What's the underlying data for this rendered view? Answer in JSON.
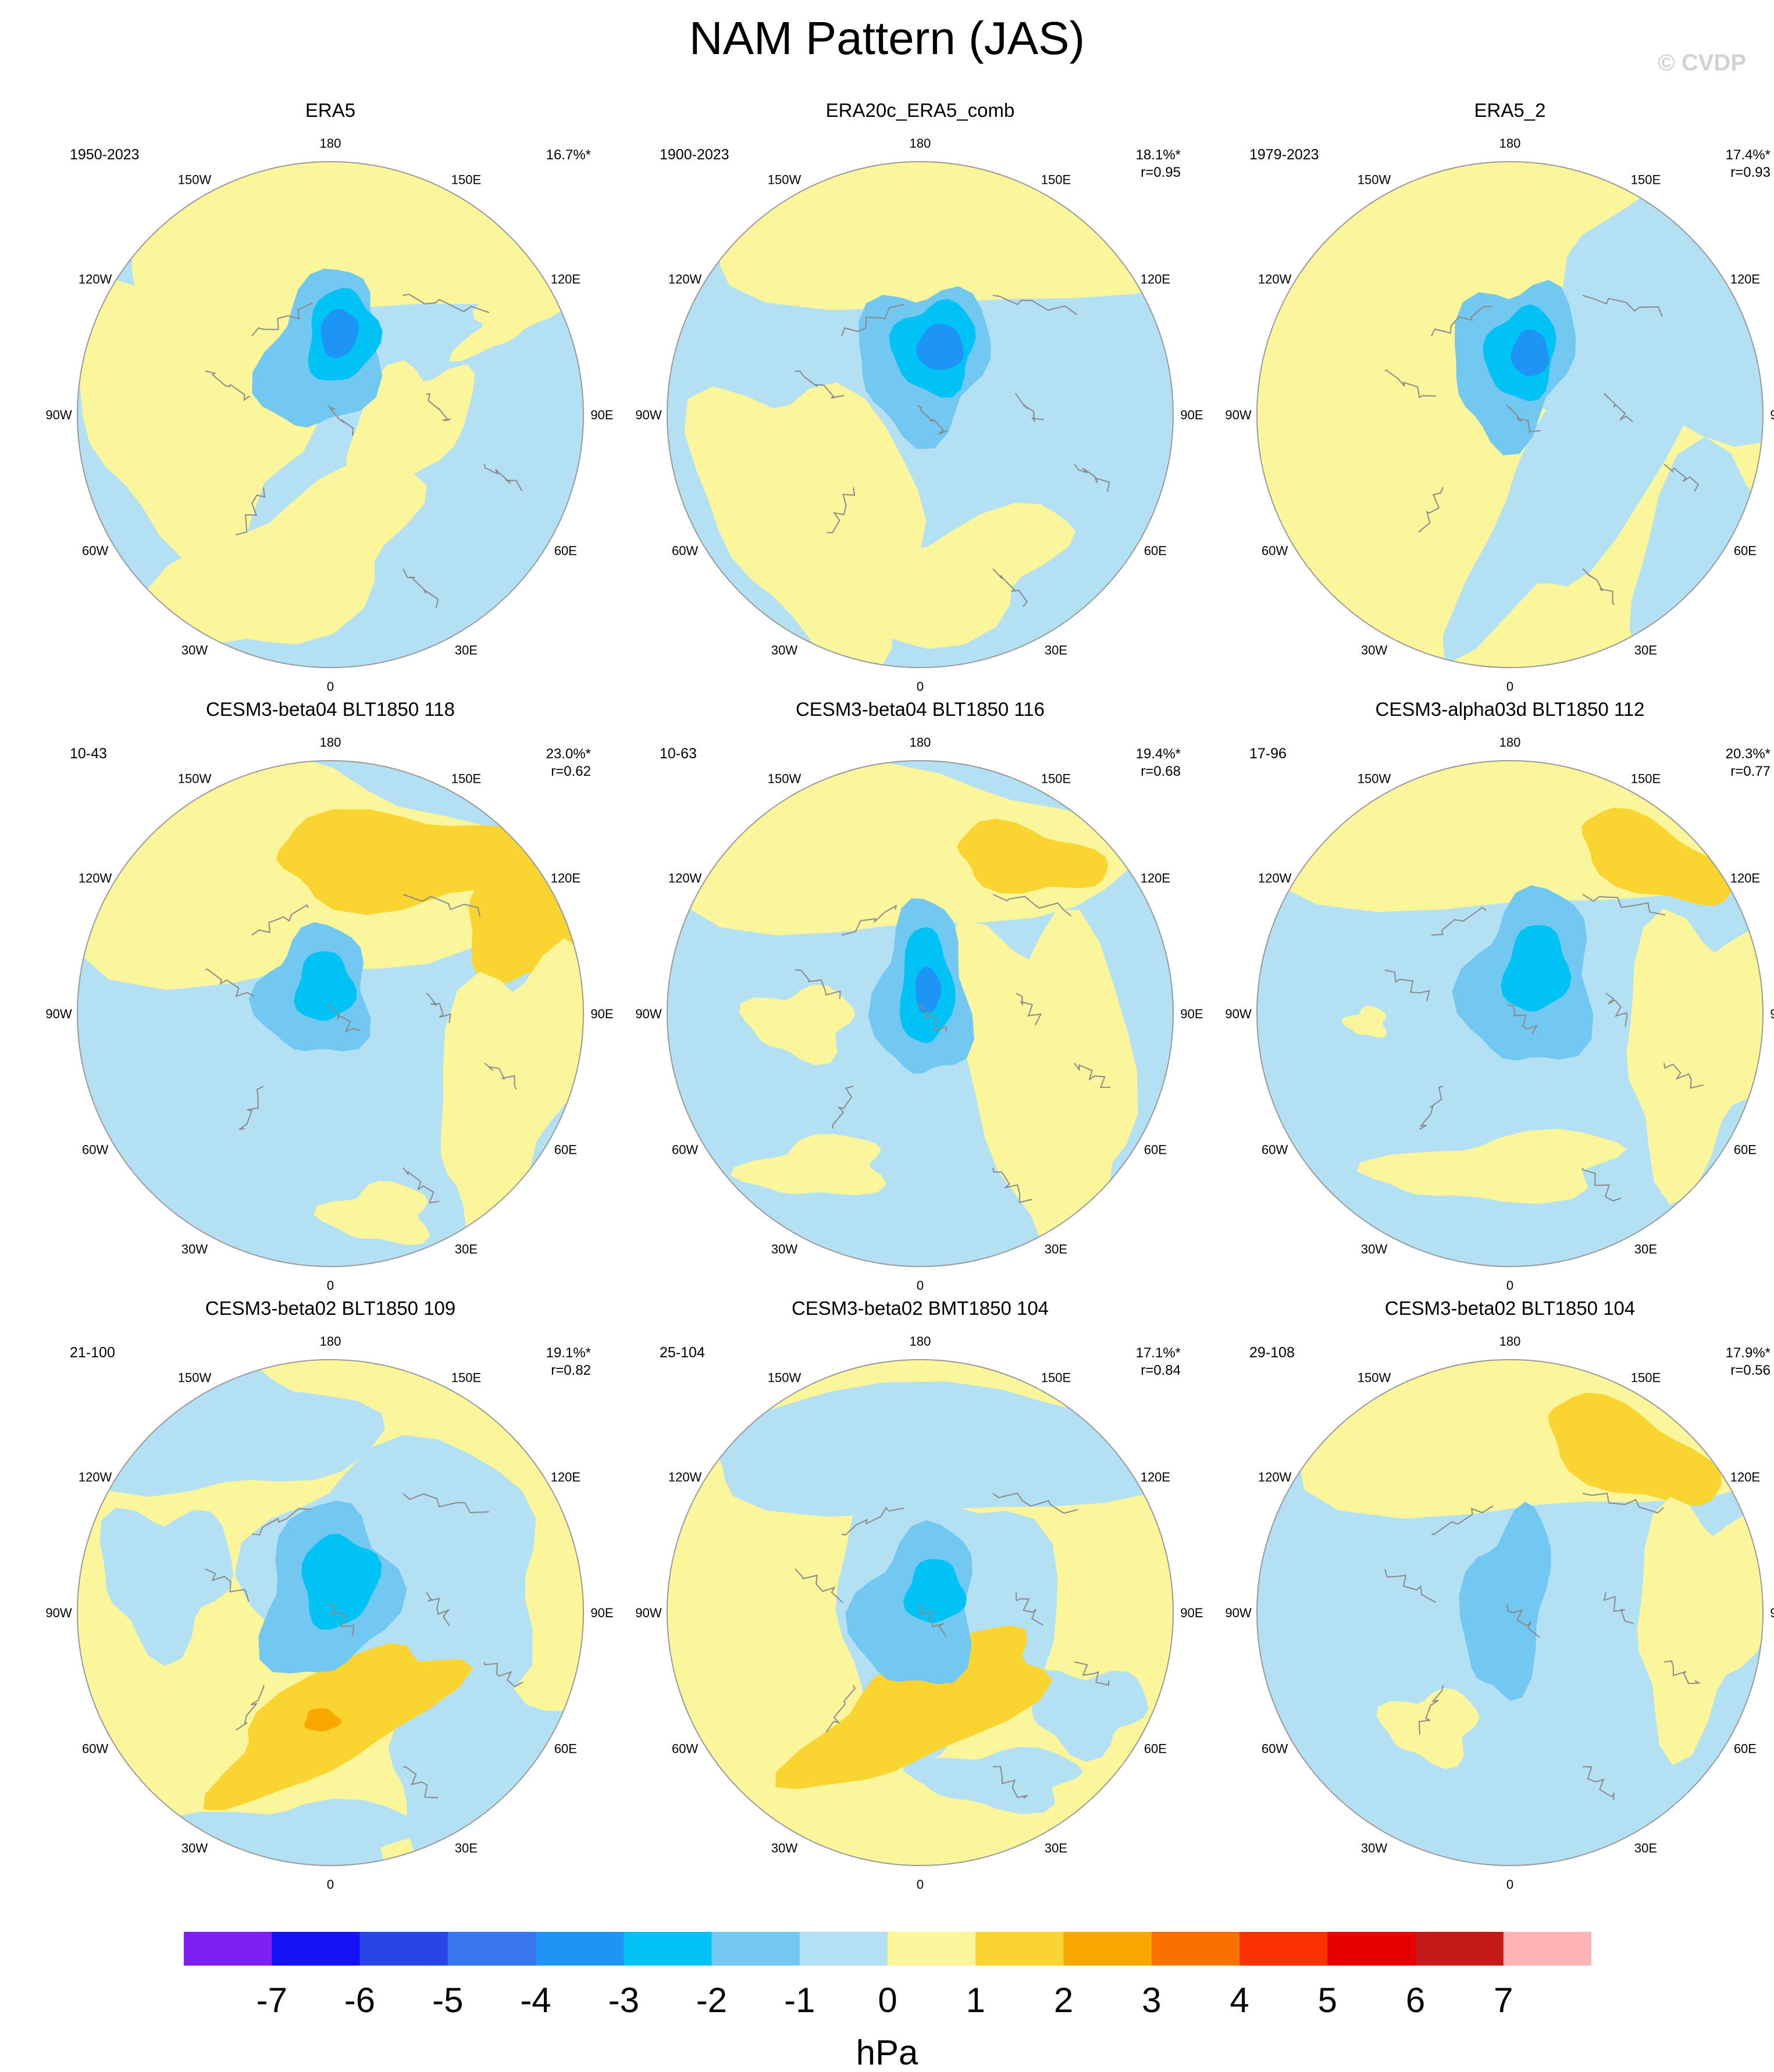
{
  "title": "NAM Pattern (JAS)",
  "watermark": "© CVDP",
  "colors": {
    "land_outline": "#8a8a8a",
    "map_border": "#9a9a9a",
    "contour_levels": [
      "#7d1ff0",
      "#1313f5",
      "#2845e8",
      "#3876ee",
      "#1e95f5",
      "#00c2f5",
      "#72c8f0",
      "#b4e0f4",
      "#fbf69c",
      "#fad532",
      "#f9a800",
      "#f97200",
      "#fa3100",
      "#e60000",
      "#c41a1a",
      "#feb3b4"
    ]
  },
  "longitude_labels": [
    "180",
    "150E",
    "120E",
    "90E",
    "60E",
    "30E",
    "0",
    "30W",
    "60W",
    "90W",
    "120W",
    "150W"
  ],
  "panels": [
    {
      "title": "ERA5",
      "period": "1950-2023",
      "pct": "16.7%*",
      "r": ""
    },
    {
      "title": "ERA20c_ERA5_comb",
      "period": "1900-2023",
      "pct": "18.1%*",
      "r": "r=0.95"
    },
    {
      "title": "ERA5_2",
      "period": "1979-2023",
      "pct": "17.4%*",
      "r": "r=0.93"
    },
    {
      "title": "CESM3-beta04 BLT1850 118",
      "period": "10-43",
      "pct": "23.0%*",
      "r": "r=0.62"
    },
    {
      "title": "CESM3-beta04 BLT1850 116",
      "period": "10-63",
      "pct": "19.4%*",
      "r": "r=0.68"
    },
    {
      "title": "CESM3-alpha03d BLT1850 112",
      "period": "17-96",
      "pct": "20.3%*",
      "r": "r=0.77"
    },
    {
      "title": "CESM3-beta02 BLT1850 109",
      "period": "21-100",
      "pct": "19.1%*",
      "r": "r=0.82"
    },
    {
      "title": "CESM3-beta02 BMT1850 104",
      "period": "25-104",
      "pct": "17.1%*",
      "r": "r=0.84"
    },
    {
      "title": "CESM3-beta02 BLT1850 104",
      "period": "29-108",
      "pct": "17.9%*",
      "r": "r=0.56"
    }
  ],
  "colorbar": {
    "ticks": [
      "-7",
      "-6",
      "-5",
      "-4",
      "-3",
      "-2",
      "-1",
      "0",
      "1",
      "2",
      "3",
      "4",
      "5",
      "6",
      "7"
    ],
    "unit": "hPa"
  }
}
